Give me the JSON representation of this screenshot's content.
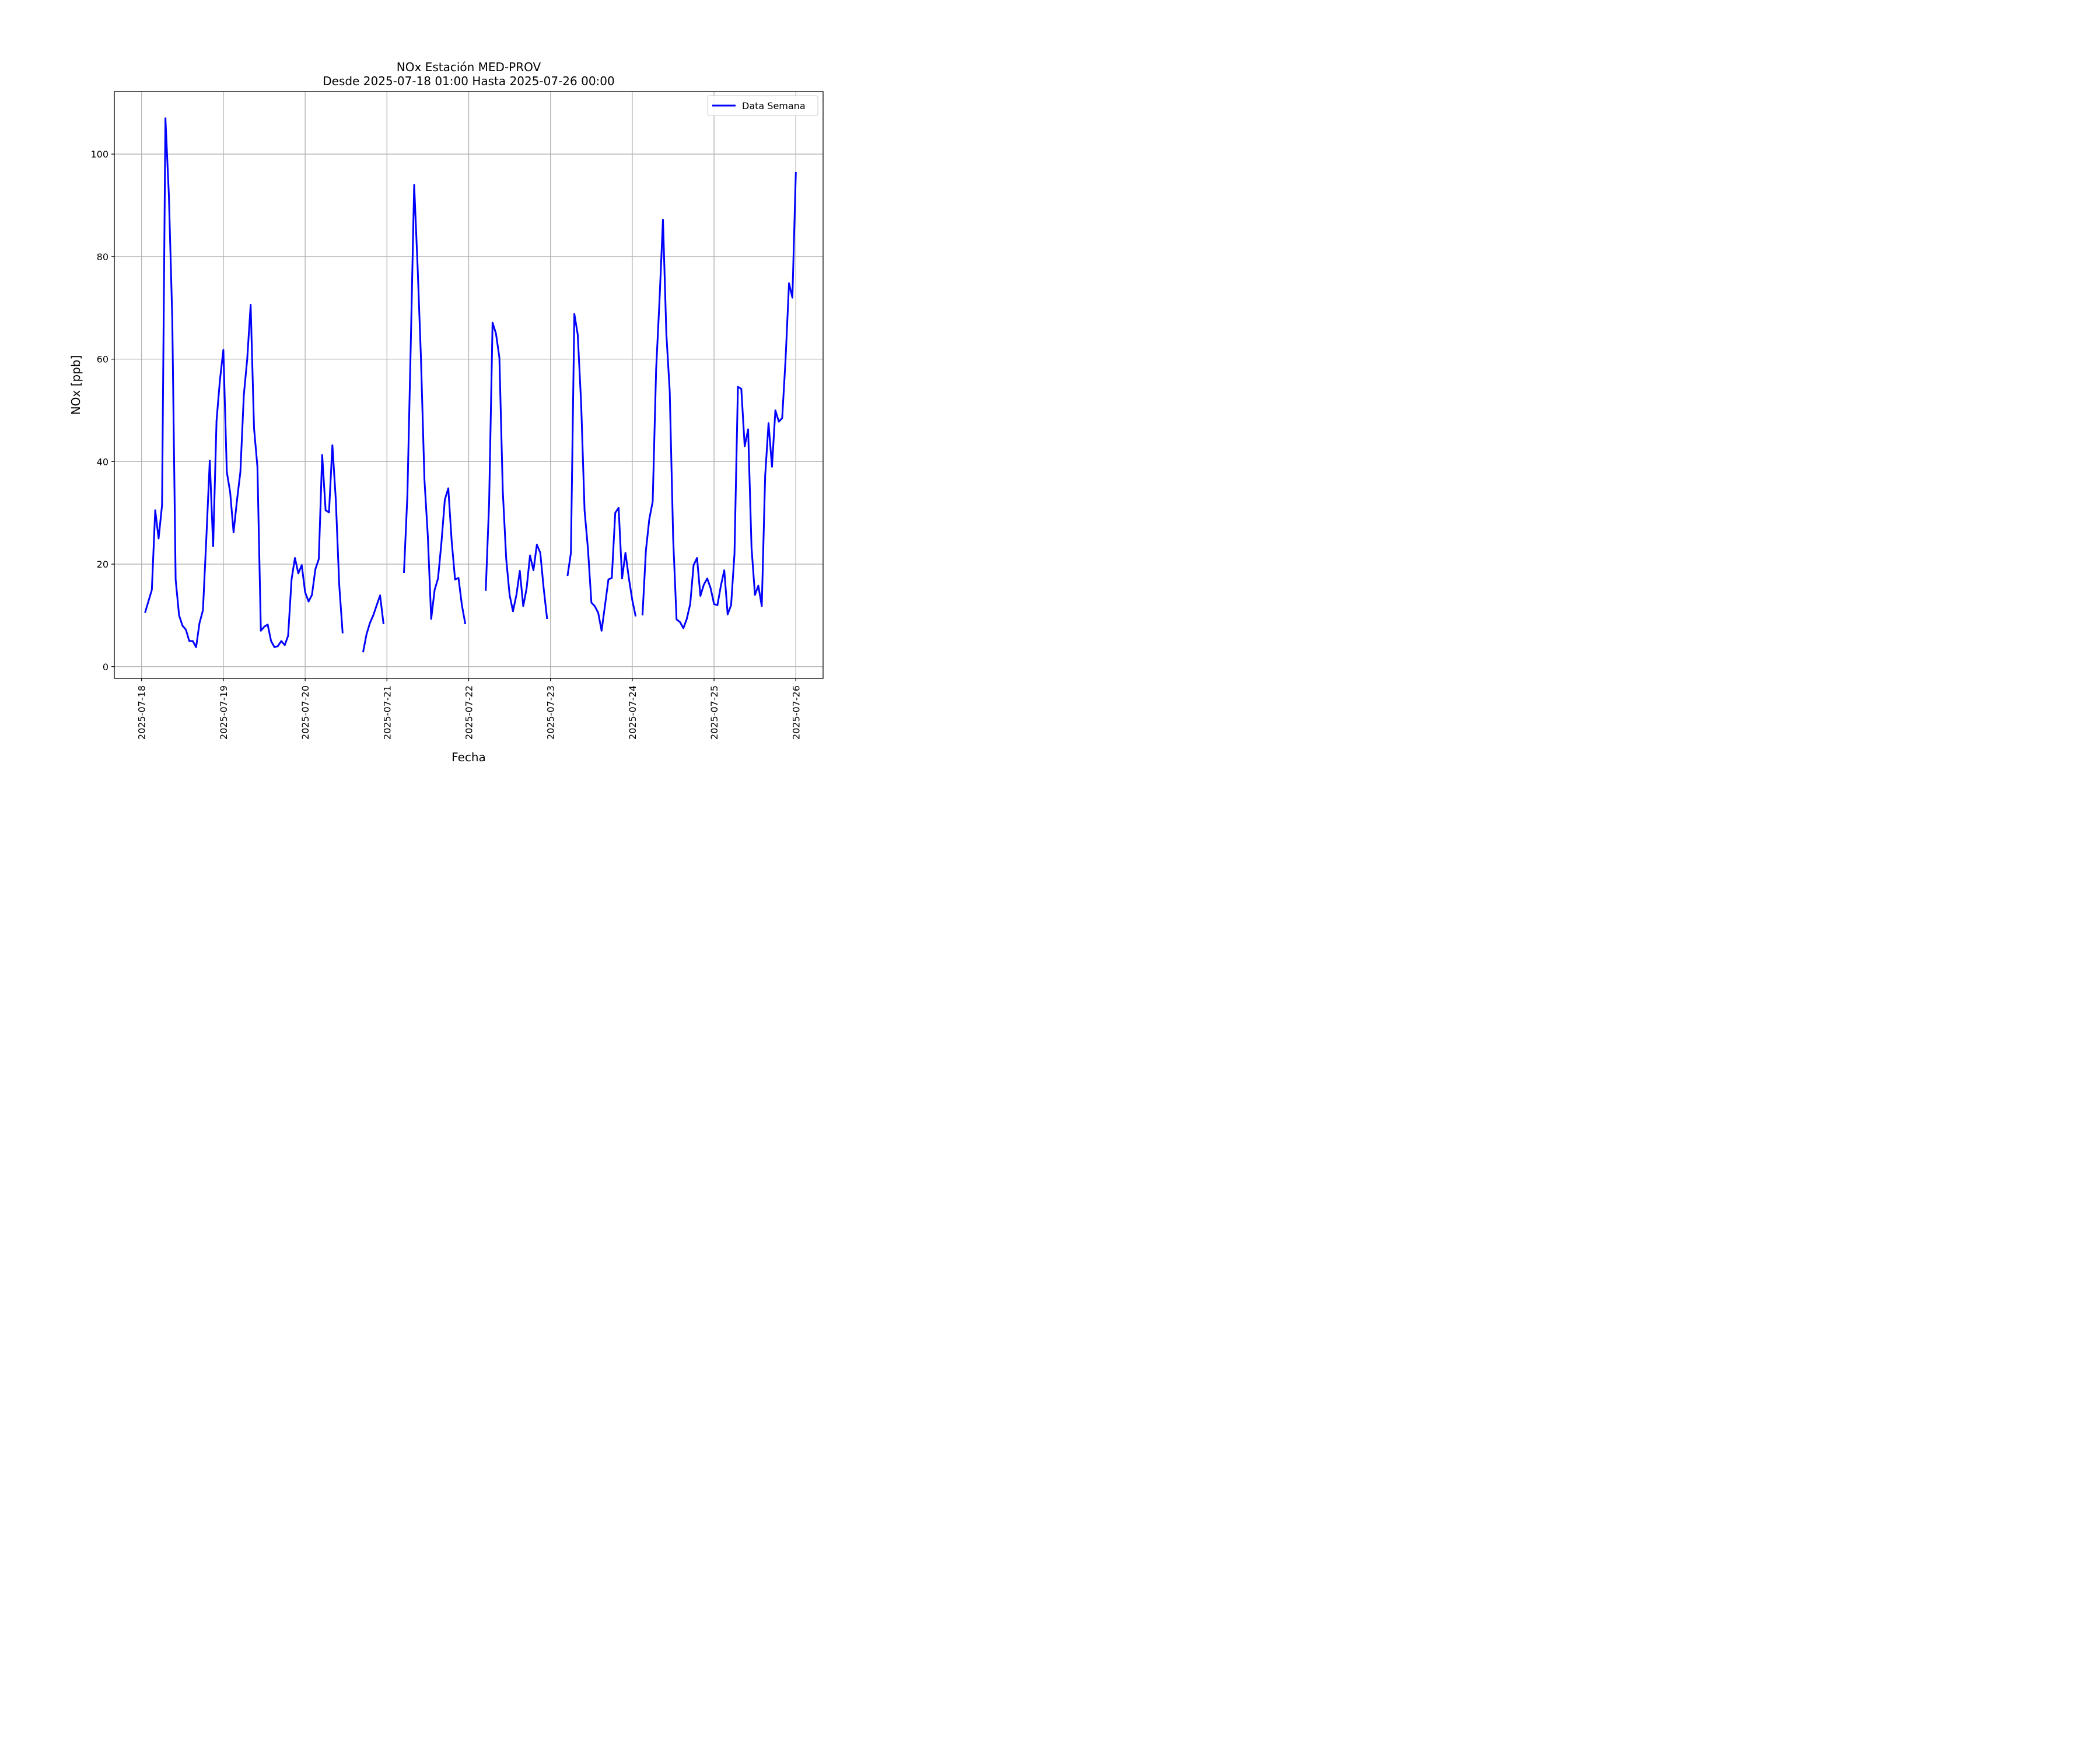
{
  "chart_data": {
    "type": "line",
    "title": "NOx Estación MED-PROV",
    "subtitle": "Desde 2025-07-18 01:00 Hasta 2025-07-26 00:00",
    "xlabel": "Fecha",
    "ylabel": "NOx [ppb]",
    "ylim": [
      -2.3,
      112.2
    ],
    "xlim": [
      "2025-07-17 16:00",
      "2025-07-26 08:00"
    ],
    "grid": true,
    "legend_position": "top-right",
    "x_tick_labels": [
      "2025-07-18",
      "2025-07-19",
      "2025-07-20",
      "2025-07-21",
      "2025-07-22",
      "2025-07-23",
      "2025-07-24",
      "2025-07-25",
      "2025-07-26"
    ],
    "y_tick_labels": [
      "0",
      "20",
      "40",
      "60",
      "80",
      "100"
    ],
    "y_ticks": [
      0,
      20,
      40,
      60,
      80,
      100
    ],
    "series": [
      {
        "name": "Data Semana",
        "color": "#0000ff",
        "points": [
          [
            "2025-07-18 01:00",
            10.5
          ],
          [
            "2025-07-18 03:00",
            15
          ],
          [
            "2025-07-18 04:00",
            30.5
          ],
          [
            "2025-07-18 05:00",
            25
          ],
          [
            "2025-07-18 06:00",
            31.5
          ],
          [
            "2025-07-18 07:00",
            107
          ],
          [
            "2025-07-18 08:00",
            92
          ],
          [
            "2025-07-18 09:00",
            68
          ],
          [
            "2025-07-18 10:00",
            17
          ],
          [
            "2025-07-18 11:00",
            10
          ],
          [
            "2025-07-18 12:00",
            8
          ],
          [
            "2025-07-18 13:00",
            7.2
          ],
          [
            "2025-07-18 14:00",
            5
          ],
          [
            "2025-07-18 15:00",
            5
          ],
          [
            "2025-07-18 16:00",
            3.8
          ],
          [
            "2025-07-18 17:00",
            8.5
          ],
          [
            "2025-07-18 18:00",
            11
          ],
          [
            "2025-07-18 19:00",
            25
          ],
          [
            "2025-07-18 20:00",
            40.2
          ],
          [
            "2025-07-18 21:00",
            23.5
          ],
          [
            "2025-07-18 22:00",
            48
          ],
          [
            "2025-07-18 23:00",
            56
          ],
          [
            "2025-07-19 00:00",
            61.8
          ],
          [
            "2025-07-19 01:00",
            38
          ],
          [
            "2025-07-19 02:00",
            34
          ],
          [
            "2025-07-19 03:00",
            26.2
          ],
          [
            "2025-07-19 04:00",
            32.5
          ],
          [
            "2025-07-19 05:00",
            38
          ],
          [
            "2025-07-19 06:00",
            53
          ],
          [
            "2025-07-19 07:00",
            60
          ],
          [
            "2025-07-19 08:00",
            70.6
          ],
          [
            "2025-07-19 09:00",
            46.5
          ],
          [
            "2025-07-19 10:00",
            39
          ],
          [
            "2025-07-19 11:00",
            7
          ],
          [
            "2025-07-19 12:00",
            7.8
          ],
          [
            "2025-07-19 13:00",
            8.2
          ],
          [
            "2025-07-19 14:00",
            5
          ],
          [
            "2025-07-19 15:00",
            3.8
          ],
          [
            "2025-07-19 16:00",
            4
          ],
          [
            "2025-07-19 17:00",
            5
          ],
          [
            "2025-07-19 18:00",
            4.2
          ],
          [
            "2025-07-19 19:00",
            6
          ],
          [
            "2025-07-19 20:00",
            17
          ],
          [
            "2025-07-19 21:00",
            21.2
          ],
          [
            "2025-07-19 22:00",
            18.2
          ],
          [
            "2025-07-19 23:00",
            19.8
          ],
          [
            "2025-07-20 00:00",
            14.5
          ],
          [
            "2025-07-20 01:00",
            12.7
          ],
          [
            "2025-07-20 02:00",
            14
          ],
          [
            "2025-07-20 03:00",
            19
          ],
          [
            "2025-07-20 04:00",
            21
          ],
          [
            "2025-07-20 05:00",
            41.3
          ],
          [
            "2025-07-20 06:00",
            30.5
          ],
          [
            "2025-07-20 07:00",
            30.1
          ],
          [
            "2025-07-20 08:00",
            43.2
          ],
          [
            "2025-07-20 09:00",
            32.5
          ],
          [
            "2025-07-20 10:00",
            16
          ],
          [
            "2025-07-20 11:00",
            6.5
          ],
          [
            "2025-07-20 12:00",
            null
          ],
          [
            "2025-07-20 17:00",
            2.8
          ],
          [
            "2025-07-20 18:00",
            6.3
          ],
          [
            "2025-07-20 19:00",
            8.5
          ],
          [
            "2025-07-20 20:00",
            10
          ],
          [
            "2025-07-20 21:00",
            12
          ],
          [
            "2025-07-20 22:00",
            13.9
          ],
          [
            "2025-07-20 23:00",
            8.3
          ],
          [
            "2025-07-21 00:00",
            null
          ],
          [
            "2025-07-21 05:00",
            18.3
          ],
          [
            "2025-07-21 06:00",
            33.5
          ],
          [
            "2025-07-21 07:00",
            63
          ],
          [
            "2025-07-21 08:00",
            94
          ],
          [
            "2025-07-21 09:00",
            78
          ],
          [
            "2025-07-21 10:00",
            60
          ],
          [
            "2025-07-21 11:00",
            36.5
          ],
          [
            "2025-07-21 12:00",
            25.5
          ],
          [
            "2025-07-21 13:00",
            9.3
          ],
          [
            "2025-07-21 14:00",
            15
          ],
          [
            "2025-07-21 15:00",
            17.2
          ],
          [
            "2025-07-21 16:00",
            24.3
          ],
          [
            "2025-07-21 17:00",
            32.6
          ],
          [
            "2025-07-21 18:00",
            34.8
          ],
          [
            "2025-07-21 19:00",
            24.5
          ],
          [
            "2025-07-21 20:00",
            17
          ],
          [
            "2025-07-21 21:00",
            17.3
          ],
          [
            "2025-07-21 22:00",
            12
          ],
          [
            "2025-07-21 23:00",
            8.3
          ],
          [
            "2025-07-22 00:00",
            null
          ],
          [
            "2025-07-22 05:00",
            14.8
          ],
          [
            "2025-07-22 06:00",
            32
          ],
          [
            "2025-07-22 07:00",
            67.1
          ],
          [
            "2025-07-22 08:00",
            65
          ],
          [
            "2025-07-22 09:00",
            60.3
          ],
          [
            "2025-07-22 10:00",
            34.3
          ],
          [
            "2025-07-22 11:00",
            21
          ],
          [
            "2025-07-22 12:00",
            14
          ],
          [
            "2025-07-22 13:00",
            10.8
          ],
          [
            "2025-07-22 14:00",
            14
          ],
          [
            "2025-07-22 15:00",
            18.7
          ],
          [
            "2025-07-22 16:00",
            11.8
          ],
          [
            "2025-07-22 17:00",
            15.3
          ],
          [
            "2025-07-22 18:00",
            21.7
          ],
          [
            "2025-07-22 19:00",
            18.8
          ],
          [
            "2025-07-22 20:00",
            23.8
          ],
          [
            "2025-07-22 21:00",
            22.2
          ],
          [
            "2025-07-22 22:00",
            15.3
          ],
          [
            "2025-07-22 23:00",
            9.3
          ],
          [
            "2025-07-23 00:00",
            null
          ],
          [
            "2025-07-23 05:00",
            17.7
          ],
          [
            "2025-07-23 06:00",
            22.2
          ],
          [
            "2025-07-23 07:00",
            68.8
          ],
          [
            "2025-07-23 08:00",
            64.8
          ],
          [
            "2025-07-23 09:00",
            51.2
          ],
          [
            "2025-07-23 10:00",
            30.5
          ],
          [
            "2025-07-23 11:00",
            23
          ],
          [
            "2025-07-23 12:00",
            12.5
          ],
          [
            "2025-07-23 13:00",
            11.8
          ],
          [
            "2025-07-23 14:00",
            10.5
          ],
          [
            "2025-07-23 15:00",
            7
          ],
          [
            "2025-07-23 16:00",
            12
          ],
          [
            "2025-07-23 17:00",
            17
          ],
          [
            "2025-07-23 18:00",
            17.3
          ],
          [
            "2025-07-23 19:00",
            30
          ],
          [
            "2025-07-23 20:00",
            31
          ],
          [
            "2025-07-23 21:00",
            17.2
          ],
          [
            "2025-07-23 22:00",
            22.2
          ],
          [
            "2025-07-23 23:00",
            17.3
          ],
          [
            "2025-07-24 00:00",
            13
          ],
          [
            "2025-07-24 01:00",
            9.8
          ],
          [
            "2025-07-24 02:00",
            null
          ],
          [
            "2025-07-24 03:00",
            10
          ],
          [
            "2025-07-24 04:00",
            22.7
          ],
          [
            "2025-07-24 05:00",
            28.8
          ],
          [
            "2025-07-24 06:00",
            32.2
          ],
          [
            "2025-07-24 07:00",
            58
          ],
          [
            "2025-07-24 08:00",
            71.5
          ],
          [
            "2025-07-24 09:00",
            87.2
          ],
          [
            "2025-07-24 10:00",
            65
          ],
          [
            "2025-07-24 11:00",
            53.7
          ],
          [
            "2025-07-24 12:00",
            25
          ],
          [
            "2025-07-24 13:00",
            9.2
          ],
          [
            "2025-07-24 14:00",
            8.7
          ],
          [
            "2025-07-24 15:00",
            7.5
          ],
          [
            "2025-07-24 16:00",
            9.3
          ],
          [
            "2025-07-24 17:00",
            12.2
          ],
          [
            "2025-07-24 18:00",
            19.8
          ],
          [
            "2025-07-24 19:00",
            21.2
          ],
          [
            "2025-07-24 20:00",
            13.8
          ],
          [
            "2025-07-24 21:00",
            16
          ],
          [
            "2025-07-24 22:00",
            17.2
          ],
          [
            "2025-07-24 23:00",
            15.3
          ],
          [
            "2025-07-25 00:00",
            12.2
          ],
          [
            "2025-07-25 01:00",
            12
          ],
          [
            "2025-07-25 02:00",
            15.8
          ],
          [
            "2025-07-25 03:00",
            18.8
          ],
          [
            "2025-07-25 04:00",
            10.2
          ],
          [
            "2025-07-25 05:00",
            12
          ],
          [
            "2025-07-25 06:00",
            22
          ],
          [
            "2025-07-25 07:00",
            54.6
          ],
          [
            "2025-07-25 08:00",
            54.2
          ],
          [
            "2025-07-25 09:00",
            43
          ],
          [
            "2025-07-25 10:00",
            46.3
          ],
          [
            "2025-07-25 11:00",
            23.3
          ],
          [
            "2025-07-25 12:00",
            14
          ],
          [
            "2025-07-25 13:00",
            15.8
          ],
          [
            "2025-07-25 14:00",
            11.8
          ],
          [
            "2025-07-25 15:00",
            37.2
          ],
          [
            "2025-07-25 16:00",
            47.5
          ],
          [
            "2025-07-25 17:00",
            39
          ],
          [
            "2025-07-25 18:00",
            50
          ],
          [
            "2025-07-25 19:00",
            47.8
          ],
          [
            "2025-07-25 20:00",
            48.5
          ],
          [
            "2025-07-25 21:00",
            60
          ],
          [
            "2025-07-25 22:00",
            74.8
          ],
          [
            "2025-07-25 23:00",
            72
          ],
          [
            "2025-07-26 00:00",
            96.5
          ]
        ]
      }
    ]
  }
}
